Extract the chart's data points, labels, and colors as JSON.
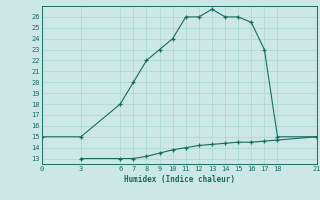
{
  "xlabel": "Humidex (Indice chaleur)",
  "bg_color": "#cce8e4",
  "line_color": "#1a6b5e",
  "grid_color": "#aad8d0",
  "x_ticks": [
    0,
    3,
    6,
    7,
    8,
    9,
    10,
    11,
    12,
    13,
    14,
    15,
    16,
    17,
    18,
    21
  ],
  "ylim": [
    12.5,
    27.0
  ],
  "xlim": [
    0,
    21
  ],
  "yticks": [
    13,
    14,
    15,
    16,
    17,
    18,
    19,
    20,
    21,
    22,
    23,
    24,
    25,
    26
  ],
  "line1_x": [
    0,
    3,
    6,
    7,
    8,
    9,
    10,
    11,
    12,
    13,
    14,
    15,
    16,
    17,
    18,
    21
  ],
  "line1_y": [
    15,
    15,
    18,
    20,
    22,
    23,
    24,
    26,
    26,
    26.7,
    26,
    26,
    25.5,
    23,
    15,
    15
  ],
  "line2_x": [
    3,
    6,
    7,
    8,
    9,
    10,
    11,
    12,
    13,
    14,
    15,
    16,
    17,
    18,
    21
  ],
  "line2_y": [
    13,
    13,
    13,
    13.2,
    13.5,
    13.8,
    14,
    14.2,
    14.3,
    14.4,
    14.5,
    14.5,
    14.6,
    14.7,
    15
  ]
}
